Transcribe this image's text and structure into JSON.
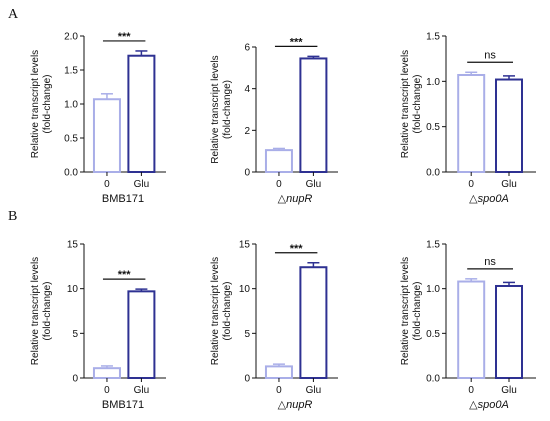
{
  "panels": [
    {
      "letter": "A",
      "row": 0
    },
    {
      "letter": "B",
      "row": 1
    }
  ],
  "colors": {
    "control_bar": "#a9aee8",
    "glu_bar": "#2e3192",
    "axis": "#111111"
  },
  "chart_data": [
    {
      "type": "bar",
      "panel": "A",
      "row": 0,
      "col": 0,
      "categories": [
        "0",
        "Glu"
      ],
      "values": [
        1.07,
        1.71
      ],
      "errors": [
        0.08,
        0.07
      ],
      "ylabel": "Relative transcript levels\n(fold-change)",
      "xlabel": "BMB171",
      "xlabel_italic": false,
      "ylim": [
        0,
        2.0
      ],
      "yticks": [
        "0.0",
        "0.5",
        "1.0",
        "1.5",
        "2.0"
      ],
      "significance": "***"
    },
    {
      "type": "bar",
      "panel": "A",
      "row": 0,
      "col": 1,
      "categories": [
        "0",
        "Glu"
      ],
      "values": [
        1.05,
        5.45
      ],
      "errors": [
        0.08,
        0.1
      ],
      "ylabel": "Relative transcript levels\n(fold-change)",
      "xlabel_prefix": "△",
      "xlabel": "nupR",
      "xlabel_italic": true,
      "ylim": [
        0,
        6
      ],
      "yticks": [
        "0",
        "2",
        "4",
        "6"
      ],
      "significance": "***"
    },
    {
      "type": "bar",
      "panel": "A",
      "row": 0,
      "col": 2,
      "categories": [
        "0",
        "Glu"
      ],
      "values": [
        1.07,
        1.02
      ],
      "errors": [
        0.03,
        0.04
      ],
      "ylabel": "Relative transcript levels\n(fold-change)",
      "xlabel_prefix": "△",
      "xlabel": "spo0A",
      "xlabel_italic": true,
      "ylim": [
        0,
        1.5
      ],
      "yticks": [
        "0.0",
        "0.5",
        "1.0",
        "1.5"
      ],
      "significance": "ns"
    },
    {
      "type": "bar",
      "panel": "B",
      "row": 1,
      "col": 0,
      "categories": [
        "0",
        "Glu"
      ],
      "values": [
        1.1,
        9.7
      ],
      "errors": [
        0.25,
        0.25
      ],
      "ylabel": "Relative transcript levels\n(fold-change)",
      "xlabel": "BMB171",
      "xlabel_italic": false,
      "ylim": [
        0,
        15
      ],
      "yticks": [
        "0",
        "5",
        "10",
        "15"
      ],
      "significance": "***"
    },
    {
      "type": "bar",
      "panel": "B",
      "row": 1,
      "col": 1,
      "categories": [
        "0",
        "Glu"
      ],
      "values": [
        1.3,
        12.4
      ],
      "errors": [
        0.25,
        0.5
      ],
      "ylabel": "Relative transcript levels\n(fold-change)",
      "xlabel_prefix": "△",
      "xlabel": "nupR",
      "xlabel_italic": true,
      "ylim": [
        0,
        15
      ],
      "yticks": [
        "0",
        "5",
        "10",
        "15"
      ],
      "significance": "***"
    },
    {
      "type": "bar",
      "panel": "B",
      "row": 1,
      "col": 2,
      "categories": [
        "0",
        "Glu"
      ],
      "values": [
        1.08,
        1.03
      ],
      "errors": [
        0.03,
        0.04
      ],
      "ylabel": "Relative transcript levels\n(fold-change)",
      "xlabel_prefix": "△",
      "xlabel": "spo0A",
      "xlabel_italic": true,
      "ylim": [
        0,
        1.5
      ],
      "yticks": [
        "0.0",
        "0.5",
        "1.0",
        "1.5"
      ],
      "significance": "ns"
    }
  ]
}
